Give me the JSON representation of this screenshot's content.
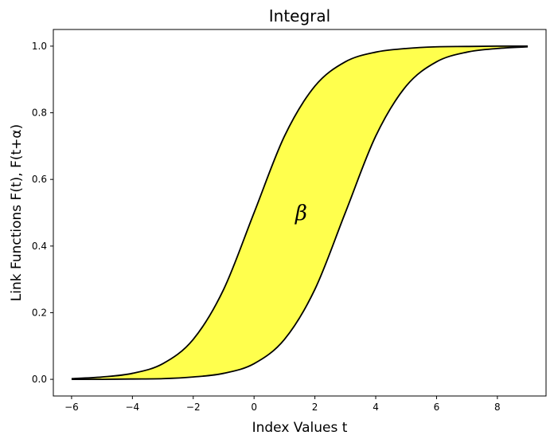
{
  "chart_data": {
    "type": "area",
    "title": "Integral",
    "xlabel": "Index Values t",
    "ylabel": "Link Functions F(t), F(t+α)",
    "xlim": [
      -6.6,
      9.6
    ],
    "ylim": [
      -0.05,
      1.05
    ],
    "xticks": [
      -6,
      -4,
      -2,
      0,
      2,
      4,
      6,
      8
    ],
    "yticks": [
      0.0,
      0.2,
      0.4,
      0.6,
      0.8,
      1.0
    ],
    "xtick_labels": [
      "−6",
      "−4",
      "−2",
      "0",
      "2",
      "4",
      "6",
      "8"
    ],
    "ytick_labels": [
      "0.0",
      "0.2",
      "0.4",
      "0.6",
      "0.8",
      "1.0"
    ],
    "grid": false,
    "series": [
      {
        "x": [
          -6,
          -5,
          -4,
          -3,
          -2,
          -1,
          0,
          1,
          2,
          3,
          4,
          5,
          6,
          7,
          8,
          9
        ],
        "values": [
          0.002,
          0.007,
          0.018,
          0.047,
          0.12,
          0.27,
          0.5,
          0.73,
          0.88,
          0.953,
          0.982,
          0.993,
          0.998,
          0.999,
          1.0,
          1.0
        ]
      },
      {
        "x": [
          -6,
          -5,
          -4,
          -3,
          -2,
          -1,
          0,
          1,
          2,
          3,
          4,
          5,
          6,
          7,
          8,
          9
        ],
        "values": [
          0.0,
          0.0,
          0.001,
          0.002,
          0.007,
          0.018,
          0.047,
          0.12,
          0.27,
          0.5,
          0.73,
          0.88,
          0.953,
          0.982,
          0.993,
          0.998
        ]
      }
    ],
    "fill_between": {
      "color": "#ffff4d"
    },
    "line_color": "#000000",
    "annotation": {
      "text": "β",
      "x": 1.55,
      "y": 0.5
    }
  }
}
